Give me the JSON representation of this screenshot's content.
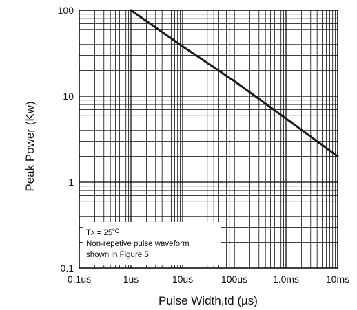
{
  "chart_data": {
    "type": "line",
    "xscale": "log",
    "yscale": "log",
    "xlim": [
      0.1,
      10000
    ],
    "ylim": [
      0.1,
      100
    ],
    "x_unit": "µs",
    "x_ticks": [
      {
        "value": 0.1,
        "label": "0.1us"
      },
      {
        "value": 1,
        "label": "1us"
      },
      {
        "value": 10,
        "label": "10us"
      },
      {
        "value": 100,
        "label": "100us"
      },
      {
        "value": 1000,
        "label": "1.0ms"
      },
      {
        "value": 10000,
        "label": "10ms"
      }
    ],
    "y_ticks": [
      {
        "value": 0.1,
        "label": "0.1"
      },
      {
        "value": 1,
        "label": "1"
      },
      {
        "value": 10,
        "label": "10"
      },
      {
        "value": 100,
        "label": "100"
      }
    ],
    "xlabel": "Pulse Width,td (µs)",
    "ylabel": "Peak Power (Kw)",
    "grid": true,
    "series": [
      {
        "values": [
          [
            1,
            100
          ],
          [
            10,
            38
          ],
          [
            100,
            15
          ],
          [
            1000,
            5.5
          ],
          [
            10000,
            2
          ]
        ]
      }
    ],
    "annotation": {
      "lines": [
        "Non-repetive pulse waveform",
        "shown in Figure 5"
      ],
      "condition": {
        "symbol": "T",
        "subscript": "A",
        "value": " = 25",
        "unit": "ºC"
      },
      "placement": "bottom-left"
    },
    "colors": {
      "line": "#1a1a1a",
      "grid": "#000000",
      "background": "#ffffff"
    }
  }
}
